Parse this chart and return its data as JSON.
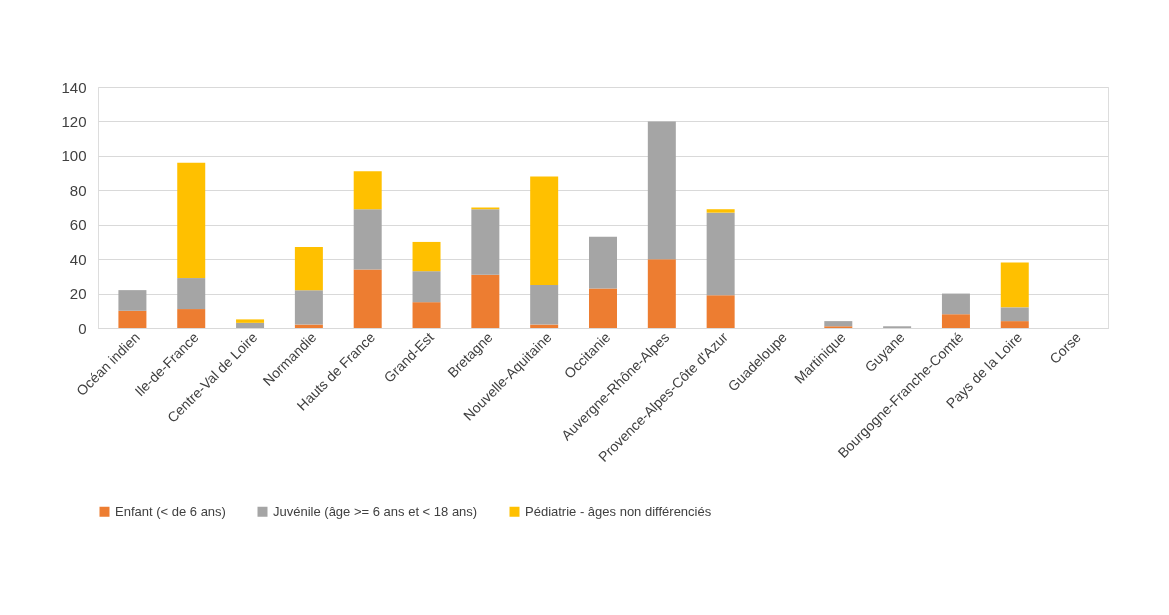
{
  "chart_data": {
    "type": "bar",
    "stacked": true,
    "categories": [
      "Océan indien",
      "Ile-de-France",
      "Centre-Val de Loire",
      "Normandie",
      "Hauts de France",
      "Grand-Est",
      "Bretagne",
      "Nouvelle-Aquitaine",
      "Occitanie",
      "Auvergne-Rhône-Alpes",
      "Provence-Alpes-Côte d'Azur",
      "Guadeloupe",
      "Martinique",
      "Guyane",
      "Bourgogne-Franche-Comté",
      "Pays de la Loire",
      "Corse"
    ],
    "series": [
      {
        "name": "Enfant (< de 6 ans)",
        "color": "#ed7d31",
        "values": [
          10,
          11,
          0,
          2,
          34,
          15,
          31,
          2,
          23,
          40,
          19,
          0,
          1,
          0,
          8,
          4,
          0
        ]
      },
      {
        "name": "Juvénile (âge >= 6 ans et < 18 ans)",
        "color": "#a5a5a5",
        "values": [
          12,
          18,
          3,
          20,
          35,
          18,
          38,
          23,
          30,
          80,
          48,
          0,
          3,
          1,
          12,
          8,
          0
        ]
      },
      {
        "name": "Pédiatrie - âges non différenciés",
        "color": "#ffc000",
        "values": [
          0,
          67,
          2,
          25,
          22,
          17,
          1,
          63,
          0,
          0,
          2,
          0,
          0,
          0,
          0,
          26,
          0
        ]
      }
    ],
    "ylim": [
      0,
      140
    ],
    "yticks": [
      0,
      20,
      40,
      60,
      80,
      100,
      120,
      140
    ],
    "grid": "y",
    "legend": "bottom"
  }
}
